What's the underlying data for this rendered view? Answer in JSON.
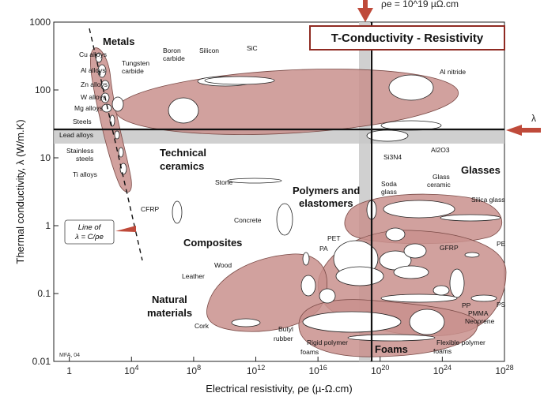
{
  "chart_data": {
    "type": "bubble-map",
    "title": "T-Conductivity - Resistivity",
    "xlabel": "Electrical resistivity, ρe (µ-Ω.cm)",
    "ylabel": "Thermal conductivity, λ (W/m.K)",
    "x_scale": "log",
    "y_scale": "log",
    "xlim": [
      0.1,
      1e+28
    ],
    "ylim": [
      0.01,
      1000
    ],
    "x_ticks": [
      "1",
      "10^4",
      "10^8",
      "10^12",
      "10^16",
      "10^20",
      "10^24",
      "10^28"
    ],
    "y_ticks": [
      "0.01",
      "0.1",
      "1",
      "10",
      "100",
      "1000"
    ],
    "top_annotation": "ρe = 10^19 µΩ.cm",
    "lambda_marker": "λ",
    "guide_line_label": [
      "Line of",
      "λ = C/ρe"
    ],
    "credit": "MFA, 04",
    "families": [
      {
        "name": "Metals"
      },
      {
        "name": "Technical ceramics"
      },
      {
        "name": "Glasses"
      },
      {
        "name": "Polymers and elastomers"
      },
      {
        "name": "Composites"
      },
      {
        "name": "Natural materials"
      },
      {
        "name": "Foams"
      }
    ],
    "material_labels": [
      "Cu alloys",
      "Al alloys",
      "Zn alloys",
      "W alloys",
      "Mg alloys",
      "Steels",
      "Lead alloys",
      "Stainless steels",
      "Ti alloys",
      "Tungsten carbide",
      "Boron carbide",
      "Silicon",
      "SiC",
      "Al nitride",
      "Al2O3",
      "Si3N4",
      "Stone",
      "Concrete",
      "CFRP",
      "Soda glass",
      "Glass ceramic",
      "Silica glass",
      "PET",
      "PA",
      "GFRP",
      "PE",
      "PP",
      "PMMA",
      "PS",
      "Neoprene",
      "Wood",
      "Leather",
      "Cork",
      "Butyl rubber",
      "Rigid polymer foams",
      "Flexible polymer foams"
    ],
    "colors": {
      "envelope_fill": "#c9918d",
      "title_box_border": "#8f2a22",
      "marker_arrow": "#bf4a3a",
      "grey_band": "#c8c8c8"
    }
  }
}
